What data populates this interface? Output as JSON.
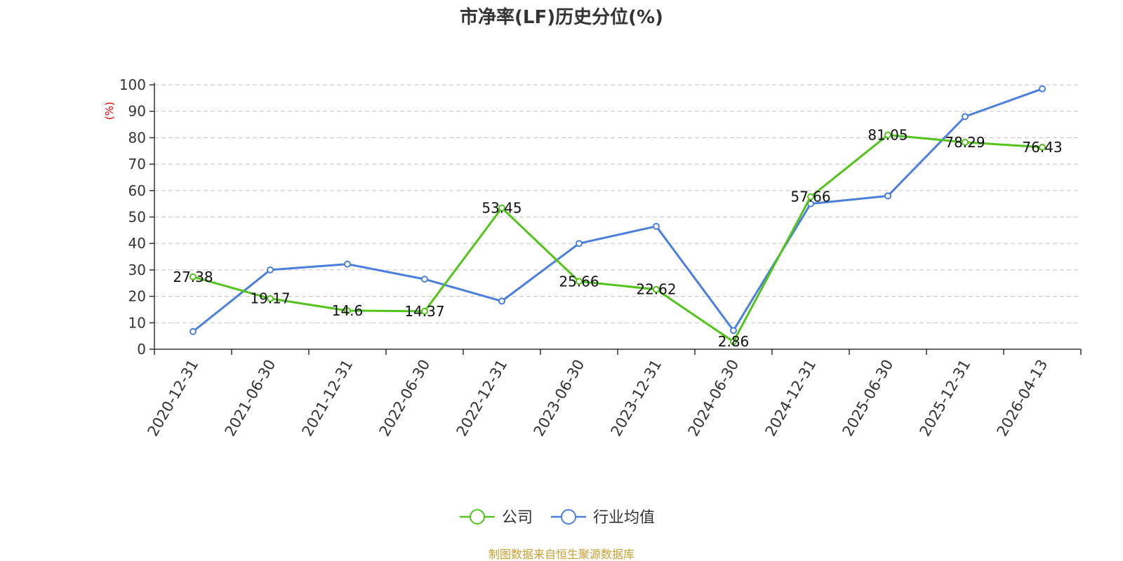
{
  "chart_data": {
    "type": "line",
    "title": "市净率(LF)历史分位(%)",
    "y_unit_label": "(%)",
    "ylim": [
      0,
      100
    ],
    "y_ticks": [
      0,
      10,
      20,
      30,
      40,
      50,
      60,
      70,
      80,
      90,
      100
    ],
    "categories": [
      "2020-12-31",
      "2021-06-30",
      "2021-12-31",
      "2022-06-30",
      "2022-12-31",
      "2023-06-30",
      "2023-12-31",
      "2024-06-30",
      "2024-12-31",
      "2025-06-30",
      "2025-12-31",
      "2026-04-13"
    ],
    "series": [
      {
        "name": "公司",
        "color": "#52c41a",
        "values": [
          27.38,
          19.17,
          14.6,
          14.37,
          53.45,
          25.66,
          22.62,
          2.86,
          57.66,
          81.05,
          78.29,
          76.43
        ],
        "labels": [
          "27.38",
          "19.17",
          "14.6",
          "14.37",
          "53.45",
          "25.66",
          "22.62",
          "2.86",
          "57.66",
          "81.05",
          "78.29",
          "76.43"
        ]
      },
      {
        "name": "行业均值",
        "color": "#4a7fdf",
        "values": [
          6.7,
          30.0,
          32.2,
          26.5,
          18.2,
          40.0,
          46.5,
          7.1,
          55.0,
          58.0,
          88.0,
          98.5
        ]
      }
    ],
    "grid": true,
    "legend_position": "bottom-center"
  },
  "colors": {
    "unit_label": "#e60000",
    "source": "#c8a030",
    "grid": "#cccccc",
    "axis": "#333333"
  },
  "source_text": "制图数据来自恒生聚源数据库"
}
